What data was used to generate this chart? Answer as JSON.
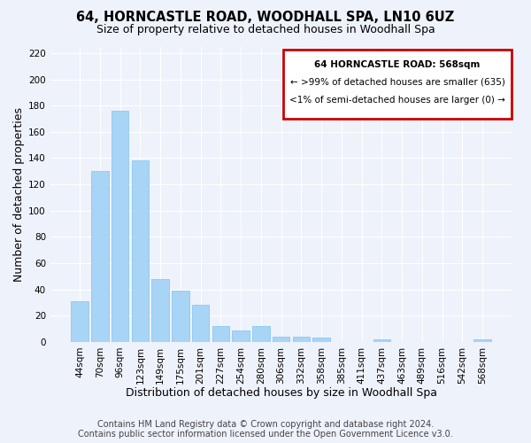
{
  "title": "64, HORNCASTLE ROAD, WOODHALL SPA, LN10 6UZ",
  "subtitle": "Size of property relative to detached houses in Woodhall Spa",
  "xlabel": "Distribution of detached houses by size in Woodhall Spa",
  "ylabel": "Number of detached properties",
  "bar_color": "#a8d4f5",
  "bar_edge_color": "#8ec8f0",
  "categories": [
    "44sqm",
    "70sqm",
    "96sqm",
    "123sqm",
    "149sqm",
    "175sqm",
    "201sqm",
    "227sqm",
    "254sqm",
    "280sqm",
    "306sqm",
    "332sqm",
    "358sqm",
    "385sqm",
    "411sqm",
    "437sqm",
    "463sqm",
    "489sqm",
    "516sqm",
    "542sqm",
    "568sqm"
  ],
  "values": [
    31,
    130,
    176,
    138,
    48,
    39,
    28,
    12,
    9,
    12,
    4,
    4,
    3,
    0,
    0,
    2,
    0,
    0,
    0,
    0,
    2
  ],
  "ylim": [
    0,
    225
  ],
  "yticks": [
    0,
    20,
    40,
    60,
    80,
    100,
    120,
    140,
    160,
    180,
    200,
    220
  ],
  "annotation_box_title": "64 HORNCASTLE ROAD: 568sqm",
  "annotation_line1": "← >99% of detached houses are smaller (635)",
  "annotation_line2": "<1% of semi-detached houses are larger (0) →",
  "annotation_box_color": "#ffffff",
  "annotation_box_edge": "#cc0000",
  "footer_line1": "Contains HM Land Registry data © Crown copyright and database right 2024.",
  "footer_line2": "Contains public sector information licensed under the Open Government Licence v3.0.",
  "background_color": "#eef2fb",
  "grid_color": "#ffffff",
  "title_fontsize": 10.5,
  "subtitle_fontsize": 9,
  "axis_label_fontsize": 9,
  "tick_fontsize": 7.5,
  "footer_fontsize": 7
}
